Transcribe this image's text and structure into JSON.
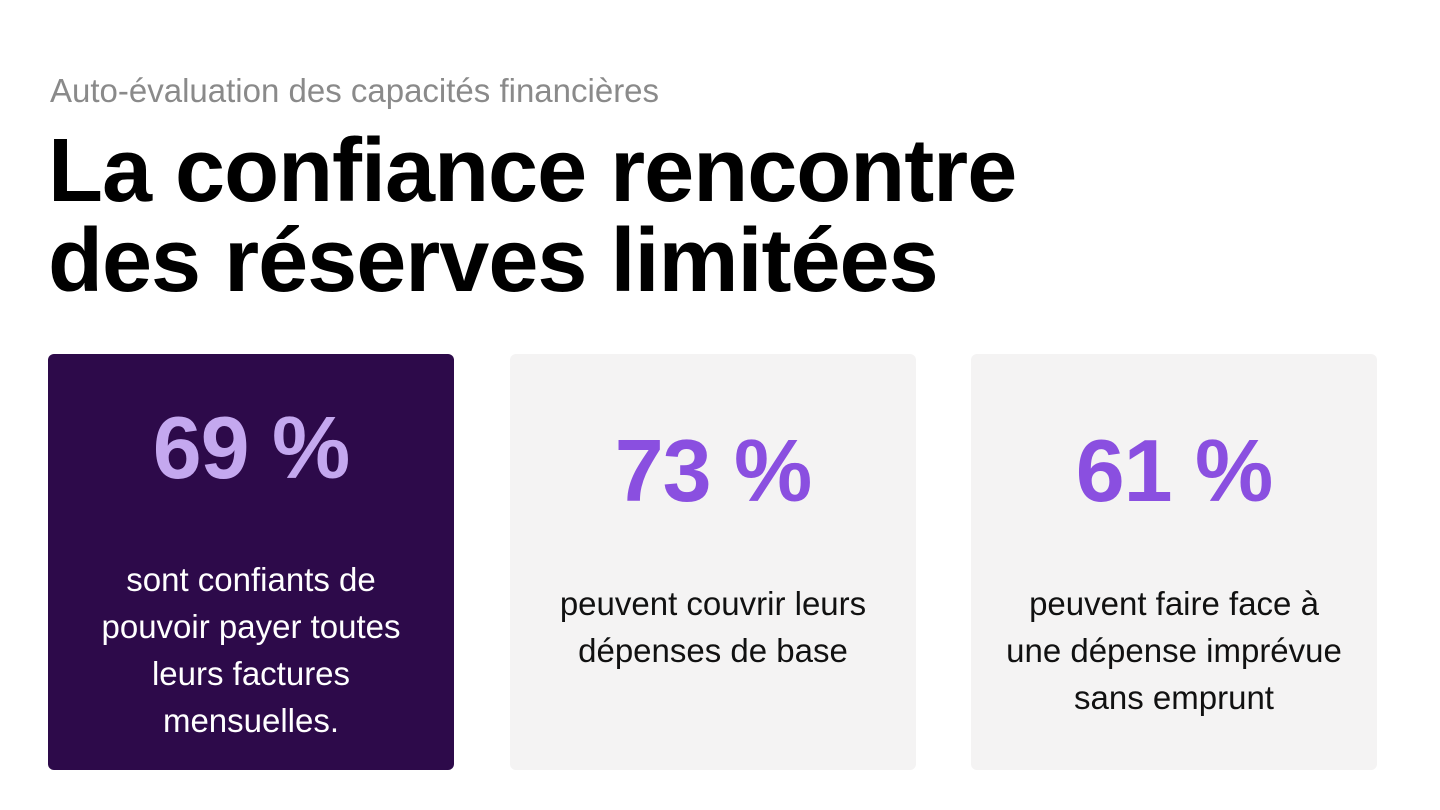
{
  "header": {
    "eyebrow": "Auto-évaluation des capacités financières",
    "headline_lines": [
      "La confiance rencontre",
      "des réserves limitées"
    ]
  },
  "cards": [
    {
      "stat": "69 %",
      "lines": [
        "sont confiants de",
        "pouvoir payer toutes",
        "leurs factures",
        "mensuelles."
      ],
      "highlighted": true
    },
    {
      "stat": "73 %",
      "lines": [
        "peuvent couvrir leurs",
        "dépenses de base"
      ],
      "highlighted": false
    },
    {
      "stat": "61 %",
      "lines": [
        "peuvent faire face à",
        "une dépense imprévue",
        "sans emprunt"
      ],
      "highlighted": false
    }
  ],
  "colors": {
    "highlight_card_bg": "#2d0a4a",
    "highlight_stat": "#c4a8ef",
    "neutral_card_bg": "#f4f3f3",
    "accent_stat": "#8a4fe0",
    "eyebrow_text": "#8a8a8a"
  }
}
